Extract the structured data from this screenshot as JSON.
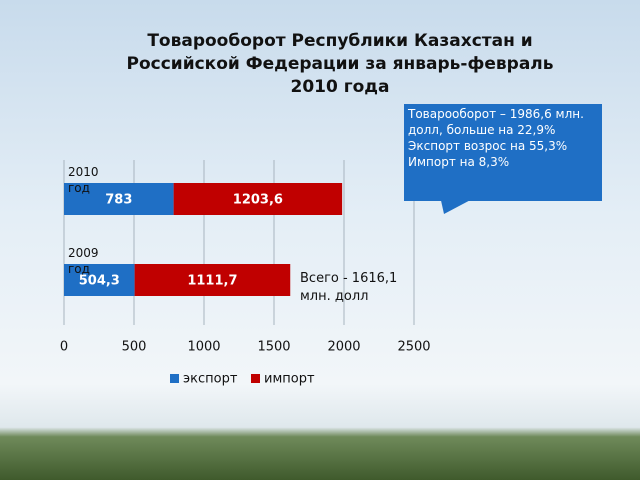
{
  "chart_data": {
    "type": "stacked-bar-horizontal",
    "title": "Товарооборот Республики Казахстан и Российской Федерации за январь-февраль 2010  года",
    "categories": [
      "2010\nгод",
      "2009\nгод"
    ],
    "series": [
      {
        "name": "экспорт",
        "color": "#1f6fc5",
        "values": [
          783,
          504.3
        ],
        "value_labels": [
          "783",
          "504,3"
        ]
      },
      {
        "name": "импорт",
        "color": "#c00000",
        "values": [
          1203.6,
          1111.7
        ],
        "value_labels": [
          "1203,6",
          "1111,7"
        ]
      }
    ],
    "xlim": [
      0,
      2500
    ],
    "xticks": [
      0,
      500,
      1000,
      1500,
      2000,
      2500
    ],
    "grid": true,
    "legend": "bottom",
    "annotations": [
      "Всего - 1616,1 млн. долл"
    ],
    "callout": [
      "Товарооборот – 1986,6 млн. долл, больше на 22,9%",
      "Экспорт возрос на 55,3%",
      "Импорт на 8,3%"
    ]
  }
}
